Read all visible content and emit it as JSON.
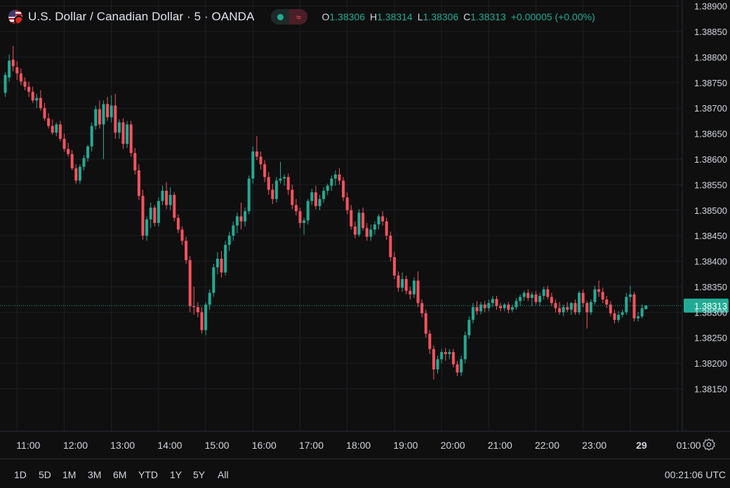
{
  "symbol": {
    "title": "U.S. Dollar / Canadian Dollar · 5 · OANDA",
    "flag_icon": "us-ca-flag-icon"
  },
  "ohlc": {
    "o_label": "O",
    "o": "1.38306",
    "h_label": "H",
    "h": "1.38314",
    "l_label": "L",
    "l": "1.38306",
    "c_label": "C",
    "c": "1.38313",
    "change": "+0.00005 (+0.00%)"
  },
  "ranges": [
    "1D",
    "5D",
    "1M",
    "3M",
    "6M",
    "YTD",
    "1Y",
    "5Y",
    "All"
  ],
  "clock": "00:21:06 UTC",
  "colors": {
    "up": "#22ab94",
    "down": "#f7525f",
    "grid": "#1d1f24",
    "text": "#d1d4dc",
    "background": "#0f0f0f"
  },
  "chart_data": {
    "type": "candlestick",
    "interval_minutes": 5,
    "yticks": [
      "1.38150",
      "1.38200",
      "1.38250",
      "1.38300",
      "1.38350",
      "1.38400",
      "1.38450",
      "1.38500",
      "1.38550",
      "1.38600",
      "1.38650",
      "1.38700",
      "1.38750",
      "1.38800",
      "1.38850",
      "1.38900"
    ],
    "ylim": [
      1.38115,
      1.38905
    ],
    "xticks": [
      {
        "label": "11:00",
        "i": 3
      },
      {
        "label": "12:00",
        "i": 15
      },
      {
        "label": "13:00",
        "i": 27
      },
      {
        "label": "14:00",
        "i": 39
      },
      {
        "label": "15:00",
        "i": 51
      },
      {
        "label": "16:00",
        "i": 63
      },
      {
        "label": "17:00",
        "i": 75
      },
      {
        "label": "18:00",
        "i": 87
      },
      {
        "label": "19:00",
        "i": 99
      },
      {
        "label": "20:00",
        "i": 111
      },
      {
        "label": "21:00",
        "i": 123
      },
      {
        "label": "22:00",
        "i": 135
      },
      {
        "label": "23:00",
        "i": 147
      },
      {
        "label": "29",
        "i": 159
      },
      {
        "label": "01:00",
        "i": 171
      }
    ],
    "last_price": "1.38313",
    "last_value": 1.38313,
    "candles": [
      [
        1.3873,
        1.3877,
        1.38722,
        1.38765
      ],
      [
        1.3876,
        1.38805,
        1.38752,
        1.38793
      ],
      [
        1.38795,
        1.38822,
        1.38772,
        1.38782
      ],
      [
        1.3878,
        1.38792,
        1.38755,
        1.38768
      ],
      [
        1.38768,
        1.38778,
        1.38745,
        1.38752
      ],
      [
        1.38752,
        1.3876,
        1.38735,
        1.38742
      ],
      [
        1.38742,
        1.38752,
        1.38722,
        1.38732
      ],
      [
        1.38732,
        1.38742,
        1.3871,
        1.38715
      ],
      [
        1.38715,
        1.38728,
        1.387,
        1.3872
      ],
      [
        1.3872,
        1.38735,
        1.38695,
        1.387
      ],
      [
        1.387,
        1.3871,
        1.38675,
        1.3868
      ],
      [
        1.3868,
        1.3869,
        1.3866,
        1.38665
      ],
      [
        1.38665,
        1.38678,
        1.38648,
        1.38652
      ],
      [
        1.38652,
        1.38672,
        1.38645,
        1.38668
      ],
      [
        1.38668,
        1.38675,
        1.38635,
        1.3864
      ],
      [
        1.3864,
        1.3865,
        1.38615,
        1.3862
      ],
      [
        1.3862,
        1.38632,
        1.38605,
        1.3861
      ],
      [
        1.3861,
        1.38618,
        1.38578,
        1.38582
      ],
      [
        1.38582,
        1.3859,
        1.38552,
        1.38558
      ],
      [
        1.38558,
        1.3859,
        1.38552,
        1.38585
      ],
      [
        1.38585,
        1.38608,
        1.38578,
        1.38602
      ],
      [
        1.38602,
        1.38628,
        1.38595,
        1.38625
      ],
      [
        1.38625,
        1.38672,
        1.38615,
        1.38665
      ],
      [
        1.38665,
        1.38705,
        1.38658,
        1.38698
      ],
      [
        1.38698,
        1.38715,
        1.3866,
        1.38668
      ],
      [
        1.38668,
        1.38715,
        1.386,
        1.38708
      ],
      [
        1.38708,
        1.38722,
        1.38675,
        1.38682
      ],
      [
        1.38682,
        1.38725,
        1.38672,
        1.38705
      ],
      [
        1.38705,
        1.38728,
        1.3864,
        1.38652
      ],
      [
        1.38652,
        1.38678,
        1.3864,
        1.38672
      ],
      [
        1.38672,
        1.3868,
        1.3862,
        1.3863
      ],
      [
        1.3863,
        1.38675,
        1.38622,
        1.38668
      ],
      [
        1.38668,
        1.38675,
        1.38605,
        1.38612
      ],
      [
        1.38612,
        1.38622,
        1.3857,
        1.38578
      ],
      [
        1.38578,
        1.3859,
        1.3852,
        1.38528
      ],
      [
        1.38528,
        1.3854,
        1.38442,
        1.3845
      ],
      [
        1.3845,
        1.38488,
        1.3844,
        1.38482
      ],
      [
        1.38482,
        1.38515,
        1.38465,
        1.38505
      ],
      [
        1.38505,
        1.3851,
        1.38468,
        1.38475
      ],
      [
        1.38475,
        1.38525,
        1.38468,
        1.38518
      ],
      [
        1.38518,
        1.38548,
        1.3851,
        1.38538
      ],
      [
        1.38538,
        1.38555,
        1.38502,
        1.3851
      ],
      [
        1.3851,
        1.38545,
        1.385,
        1.3853
      ],
      [
        1.3853,
        1.38535,
        1.38478,
        1.38485
      ],
      [
        1.38485,
        1.38492,
        1.38455,
        1.38462
      ],
      [
        1.38462,
        1.38468,
        1.38432,
        1.3844
      ],
      [
        1.3844,
        1.38448,
        1.38395,
        1.38402
      ],
      [
        1.38402,
        1.3841,
        1.383,
        1.38312
      ],
      [
        1.38312,
        1.3835,
        1.38295,
        1.3831
      ],
      [
        1.3831,
        1.3832,
        1.3829,
        1.383
      ],
      [
        1.383,
        1.3831,
        1.38258,
        1.38265
      ],
      [
        1.38265,
        1.3832,
        1.38255,
        1.38315
      ],
      [
        1.38315,
        1.38345,
        1.38305,
        1.38338
      ],
      [
        1.38338,
        1.38395,
        1.3833,
        1.38388
      ],
      [
        1.38388,
        1.38418,
        1.38375,
        1.38405
      ],
      [
        1.38405,
        1.3842,
        1.38368,
        1.38378
      ],
      [
        1.38378,
        1.3844,
        1.38372,
        1.38432
      ],
      [
        1.38432,
        1.38458,
        1.3842,
        1.3845
      ],
      [
        1.3845,
        1.38478,
        1.3844,
        1.3847
      ],
      [
        1.3847,
        1.38495,
        1.38455,
        1.38488
      ],
      [
        1.38488,
        1.38515,
        1.38462,
        1.38478
      ],
      [
        1.38478,
        1.38505,
        1.38468,
        1.38498
      ],
      [
        1.38498,
        1.38568,
        1.38492,
        1.38562
      ],
      [
        1.38562,
        1.38625,
        1.38552,
        1.38615
      ],
      [
        1.38615,
        1.38645,
        1.38598,
        1.38605
      ],
      [
        1.38605,
        1.38615,
        1.3858,
        1.3859
      ],
      [
        1.3859,
        1.38598,
        1.38555,
        1.38565
      ],
      [
        1.38565,
        1.38575,
        1.3853,
        1.3854
      ],
      [
        1.3854,
        1.38552,
        1.38512,
        1.38522
      ],
      [
        1.38522,
        1.38565,
        1.38515,
        1.38558
      ],
      [
        1.38558,
        1.38595,
        1.38552,
        1.38562
      ],
      [
        1.38562,
        1.3857,
        1.38548,
        1.38565
      ],
      [
        1.38565,
        1.38572,
        1.3853,
        1.3854
      ],
      [
        1.3854,
        1.3855,
        1.38502,
        1.3851
      ],
      [
        1.3851,
        1.38522,
        1.3849,
        1.38498
      ],
      [
        1.38498,
        1.38505,
        1.38465,
        1.38475
      ],
      [
        1.38475,
        1.38485,
        1.38452,
        1.3848
      ],
      [
        1.3848,
        1.38522,
        1.38472,
        1.38518
      ],
      [
        1.38518,
        1.38542,
        1.3851,
        1.38535
      ],
      [
        1.38535,
        1.38548,
        1.38502,
        1.38508
      ],
      [
        1.38508,
        1.3853,
        1.385,
        1.38522
      ],
      [
        1.38522,
        1.38545,
        1.38515,
        1.38538
      ],
      [
        1.38538,
        1.38552,
        1.3853,
        1.38548
      ],
      [
        1.38548,
        1.38568,
        1.38538,
        1.38562
      ],
      [
        1.38562,
        1.38578,
        1.38548,
        1.3857
      ],
      [
        1.3857,
        1.38582,
        1.3855,
        1.38558
      ],
      [
        1.38558,
        1.38565,
        1.38518,
        1.38525
      ],
      [
        1.38525,
        1.38535,
        1.38492,
        1.385
      ],
      [
        1.385,
        1.3851,
        1.38462,
        1.38468
      ],
      [
        1.38468,
        1.38478,
        1.38445,
        1.38452
      ],
      [
        1.38452,
        1.38502,
        1.38448,
        1.38495
      ],
      [
        1.38495,
        1.38505,
        1.3846,
        1.38465
      ],
      [
        1.38465,
        1.38475,
        1.3844,
        1.38448
      ],
      [
        1.38448,
        1.38472,
        1.3844,
        1.38462
      ],
      [
        1.38462,
        1.38478,
        1.38452,
        1.38472
      ],
      [
        1.38472,
        1.38492,
        1.38462,
        1.38488
      ],
      [
        1.38488,
        1.38498,
        1.3847,
        1.38478
      ],
      [
        1.38478,
        1.38485,
        1.38442,
        1.3845
      ],
      [
        1.3845,
        1.38458,
        1.384,
        1.38408
      ],
      [
        1.38408,
        1.38418,
        1.38365,
        1.38372
      ],
      [
        1.38372,
        1.3838,
        1.3834,
        1.38348
      ],
      [
        1.38348,
        1.38378,
        1.3834,
        1.38365
      ],
      [
        1.38365,
        1.38372,
        1.38335,
        1.38342
      ],
      [
        1.38342,
        1.3835,
        1.38325,
        1.38335
      ],
      [
        1.38335,
        1.38368,
        1.38328,
        1.38362
      ],
      [
        1.38362,
        1.3838,
        1.3831,
        1.38318
      ],
      [
        1.38318,
        1.38325,
        1.3829,
        1.38298
      ],
      [
        1.38298,
        1.38305,
        1.3825,
        1.38258
      ],
      [
        1.38258,
        1.38265,
        1.38218,
        1.38228
      ],
      [
        1.38228,
        1.38235,
        1.38168,
        1.38188
      ],
      [
        1.38188,
        1.38215,
        1.3818,
        1.38208
      ],
      [
        1.38208,
        1.38228,
        1.382,
        1.38222
      ],
      [
        1.38222,
        1.3823,
        1.38205,
        1.38218
      ],
      [
        1.38218,
        1.38228,
        1.38208,
        1.38222
      ],
      [
        1.38222,
        1.38228,
        1.38192,
        1.38198
      ],
      [
        1.38198,
        1.38205,
        1.38175,
        1.38182
      ],
      [
        1.38182,
        1.38215,
        1.38175,
        1.38208
      ],
      [
        1.38208,
        1.38262,
        1.382,
        1.38255
      ],
      [
        1.38255,
        1.38292,
        1.38248,
        1.38285
      ],
      [
        1.38285,
        1.38318,
        1.38278,
        1.3831
      ],
      [
        1.3831,
        1.38322,
        1.38295,
        1.38302
      ],
      [
        1.38302,
        1.3832,
        1.38296,
        1.38315
      ],
      [
        1.38315,
        1.38322,
        1.383,
        1.38308
      ],
      [
        1.38308,
        1.38325,
        1.38302,
        1.38318
      ],
      [
        1.38318,
        1.38332,
        1.3831,
        1.38326
      ],
      [
        1.38326,
        1.38332,
        1.38305,
        1.38312
      ],
      [
        1.38312,
        1.38318,
        1.38302,
        1.38308
      ],
      [
        1.38308,
        1.38318,
        1.38302,
        1.38315
      ],
      [
        1.38315,
        1.3832,
        1.38298,
        1.38305
      ],
      [
        1.38305,
        1.38315,
        1.383,
        1.3831
      ],
      [
        1.3831,
        1.38328,
        1.38305,
        1.38322
      ],
      [
        1.38322,
        1.38335,
        1.38312,
        1.3833
      ],
      [
        1.3833,
        1.38342,
        1.38322,
        1.38338
      ],
      [
        1.38338,
        1.38345,
        1.38322,
        1.38328
      ],
      [
        1.38328,
        1.3834,
        1.38312,
        1.38335
      ],
      [
        1.38335,
        1.38342,
        1.38315,
        1.3832
      ],
      [
        1.3832,
        1.38338,
        1.38312,
        1.38332
      ],
      [
        1.38332,
        1.3835,
        1.38325,
        1.38345
      ],
      [
        1.38345,
        1.38352,
        1.38325,
        1.3833
      ],
      [
        1.3833,
        1.38338,
        1.38312,
        1.38318
      ],
      [
        1.38318,
        1.38325,
        1.383,
        1.38308
      ],
      [
        1.38308,
        1.3832,
        1.38295,
        1.383
      ],
      [
        1.383,
        1.38315,
        1.38292,
        1.3831
      ],
      [
        1.3831,
        1.3832,
        1.383,
        1.38305
      ],
      [
        1.38305,
        1.3832,
        1.38295,
        1.38318
      ],
      [
        1.38318,
        1.38325,
        1.38295,
        1.383
      ],
      [
        1.383,
        1.38342,
        1.38295,
        1.38338
      ],
      [
        1.38338,
        1.38345,
        1.3831,
        1.38318
      ],
      [
        1.38318,
        1.38322,
        1.38268,
        1.383
      ],
      [
        1.383,
        1.38325,
        1.38295,
        1.3832
      ],
      [
        1.3832,
        1.38352,
        1.38315,
        1.38345
      ],
      [
        1.38345,
        1.38362,
        1.3833,
        1.3834
      ],
      [
        1.3834,
        1.38348,
        1.38318,
        1.38325
      ],
      [
        1.38325,
        1.38332,
        1.38308,
        1.38315
      ],
      [
        1.38315,
        1.38322,
        1.38292,
        1.38298
      ],
      [
        1.38298,
        1.38305,
        1.38278,
        1.38285
      ],
      [
        1.38285,
        1.38302,
        1.3828,
        1.38295
      ],
      [
        1.38295,
        1.38305,
        1.3829,
        1.383
      ],
      [
        1.383,
        1.38338,
        1.38295,
        1.3833
      ],
      [
        1.3833,
        1.38352,
        1.3832,
        1.38335
      ],
      [
        1.38335,
        1.3834,
        1.38282,
        1.38288
      ],
      [
        1.38288,
        1.383,
        1.38282,
        1.38292
      ],
      [
        1.38292,
        1.38315,
        1.38288,
        1.38308
      ],
      [
        1.38306,
        1.38314,
        1.38306,
        1.38313
      ]
    ]
  }
}
